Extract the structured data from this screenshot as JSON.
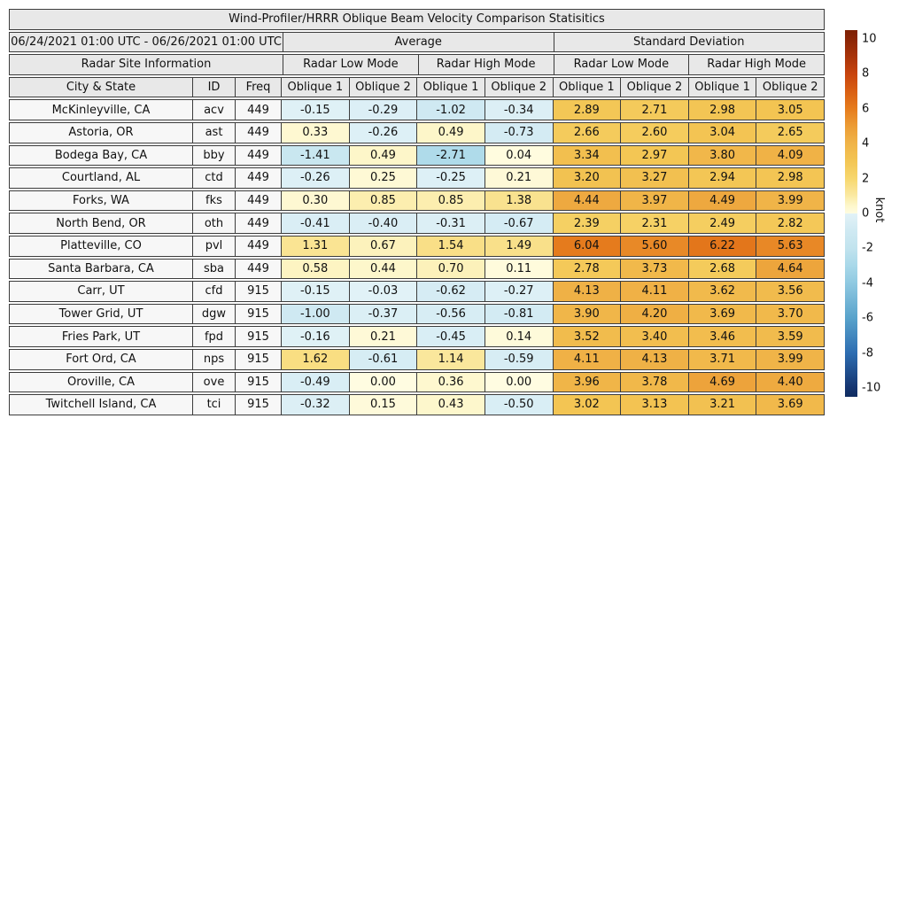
{
  "title": "Wind-Profiler/HRRR Oblique Beam Velocity Comparison Statisitics",
  "header": {
    "date_range": "06/24/2021 01:00 UTC - 06/26/2021 01:00 UTC",
    "avg_label": "Average",
    "sd_label": "Standard Deviation",
    "site_info_label": "Radar Site Information",
    "mode_labels": [
      "Radar Low Mode",
      "Radar High Mode",
      "Radar Low Mode",
      "Radar High Mode"
    ],
    "columns": [
      "City & State",
      "ID",
      "Freq",
      "Oblique 1",
      "Oblique 2",
      "Oblique 1",
      "Oblique 2",
      "Oblique 1",
      "Oblique 2",
      "Oblique 1",
      "Oblique 2"
    ]
  },
  "chart_data": {
    "type": "heatmap-table",
    "title": "Wind-Profiler/HRRR Oblique Beam Velocity Comparison Statisitics",
    "value_columns": [
      "Average Radar Low Mode Oblique 1",
      "Average Radar Low Mode Oblique 2",
      "Average Radar High Mode Oblique 1",
      "Average Radar High Mode Oblique 2",
      "Std Dev Radar Low Mode Oblique 1",
      "Std Dev Radar Low Mode Oblique 2",
      "Std Dev Radar High Mode Oblique 1",
      "Std Dev Radar High Mode Oblique 2"
    ],
    "rows": [
      {
        "city": "McKinleyville, CA",
        "id": "acv",
        "freq": "449",
        "values": [
          "-0.15",
          "-0.29",
          "-1.02",
          "-0.34",
          "2.89",
          "2.71",
          "2.98",
          "3.05"
        ]
      },
      {
        "city": "Astoria, OR",
        "id": "ast",
        "freq": "449",
        "values": [
          "0.33",
          "-0.26",
          "0.49",
          "-0.73",
          "2.66",
          "2.60",
          "3.04",
          "2.65"
        ]
      },
      {
        "city": "Bodega Bay, CA",
        "id": "bby",
        "freq": "449",
        "values": [
          "-1.41",
          "0.49",
          "-2.71",
          "0.04",
          "3.34",
          "2.97",
          "3.80",
          "4.09"
        ]
      },
      {
        "city": "Courtland, AL",
        "id": "ctd",
        "freq": "449",
        "values": [
          "-0.26",
          "0.25",
          "-0.25",
          "0.21",
          "3.20",
          "3.27",
          "2.94",
          "2.98"
        ]
      },
      {
        "city": "Forks, WA",
        "id": "fks",
        "freq": "449",
        "values": [
          "0.30",
          "0.85",
          "0.85",
          "1.38",
          "4.44",
          "3.97",
          "4.49",
          "3.99"
        ]
      },
      {
        "city": "North Bend, OR",
        "id": "oth",
        "freq": "449",
        "values": [
          "-0.41",
          "-0.40",
          "-0.31",
          "-0.67",
          "2.39",
          "2.31",
          "2.49",
          "2.82"
        ]
      },
      {
        "city": "Platteville, CO",
        "id": "pvl",
        "freq": "449",
        "values": [
          "1.31",
          "0.67",
          "1.54",
          "1.49",
          "6.04",
          "5.60",
          "6.22",
          "5.63"
        ]
      },
      {
        "city": "Santa Barbara, CA",
        "id": "sba",
        "freq": "449",
        "values": [
          "0.58",
          "0.44",
          "0.70",
          "0.11",
          "2.78",
          "3.73",
          "2.68",
          "4.64"
        ]
      },
      {
        "city": "Carr, UT",
        "id": "cfd",
        "freq": "915",
        "values": [
          "-0.15",
          "-0.03",
          "-0.62",
          "-0.27",
          "4.13",
          "4.11",
          "3.62",
          "3.56"
        ]
      },
      {
        "city": "Tower Grid, UT",
        "id": "dgw",
        "freq": "915",
        "values": [
          "-1.00",
          "-0.37",
          "-0.56",
          "-0.81",
          "3.90",
          "4.20",
          "3.69",
          "3.70"
        ]
      },
      {
        "city": "Fries Park, UT",
        "id": "fpd",
        "freq": "915",
        "values": [
          "-0.16",
          "0.21",
          "-0.45",
          "0.14",
          "3.52",
          "3.40",
          "3.46",
          "3.59"
        ]
      },
      {
        "city": "Fort Ord, CA",
        "id": "nps",
        "freq": "915",
        "values": [
          "1.62",
          "-0.61",
          "1.14",
          "-0.59",
          "4.11",
          "4.13",
          "3.71",
          "3.99"
        ]
      },
      {
        "city": "Oroville, CA",
        "id": "ove",
        "freq": "915",
        "values": [
          "-0.49",
          "0.00",
          "0.36",
          "0.00",
          "3.96",
          "3.78",
          "4.69",
          "4.40"
        ]
      },
      {
        "city": "Twitchell Island, CA",
        "id": "tci",
        "freq": "915",
        "values": [
          "-0.32",
          "0.15",
          "0.43",
          "-0.50",
          "3.02",
          "3.13",
          "3.21",
          "3.69"
        ]
      }
    ],
    "colorbar": {
      "label": "knot",
      "vmin": -10.5,
      "vmax": 10.5,
      "ticks": [
        10,
        8,
        6,
        4,
        2,
        0,
        -2,
        -4,
        -6,
        -8,
        -10
      ],
      "palette_positive": [
        [
          10.5,
          "#7d2004"
        ],
        [
          10,
          "#8a2506"
        ],
        [
          9,
          "#a83309"
        ],
        [
          8,
          "#c7440e"
        ],
        [
          7,
          "#d95f13"
        ],
        [
          6,
          "#e67c1d"
        ],
        [
          5,
          "#ec9c35"
        ],
        [
          4,
          "#f0b448"
        ],
        [
          3,
          "#f3c553"
        ],
        [
          2,
          "#f7d76d"
        ],
        [
          1.5,
          "#f9e089"
        ],
        [
          1,
          "#fbeaa4"
        ],
        [
          0.5,
          "#fdf6c8"
        ],
        [
          0,
          "#fffce1"
        ]
      ],
      "palette_negative": [
        [
          0,
          "#e2f2f7"
        ],
        [
          -1,
          "#cfe9f2"
        ],
        [
          -2,
          "#c1e3ee"
        ],
        [
          -3,
          "#a8d8e9"
        ],
        [
          -4,
          "#8fc9e1"
        ],
        [
          -6,
          "#58a2cb"
        ],
        [
          -8,
          "#2d6db1"
        ],
        [
          -10,
          "#14346f"
        ],
        [
          -10.5,
          "#102c60"
        ]
      ]
    }
  }
}
